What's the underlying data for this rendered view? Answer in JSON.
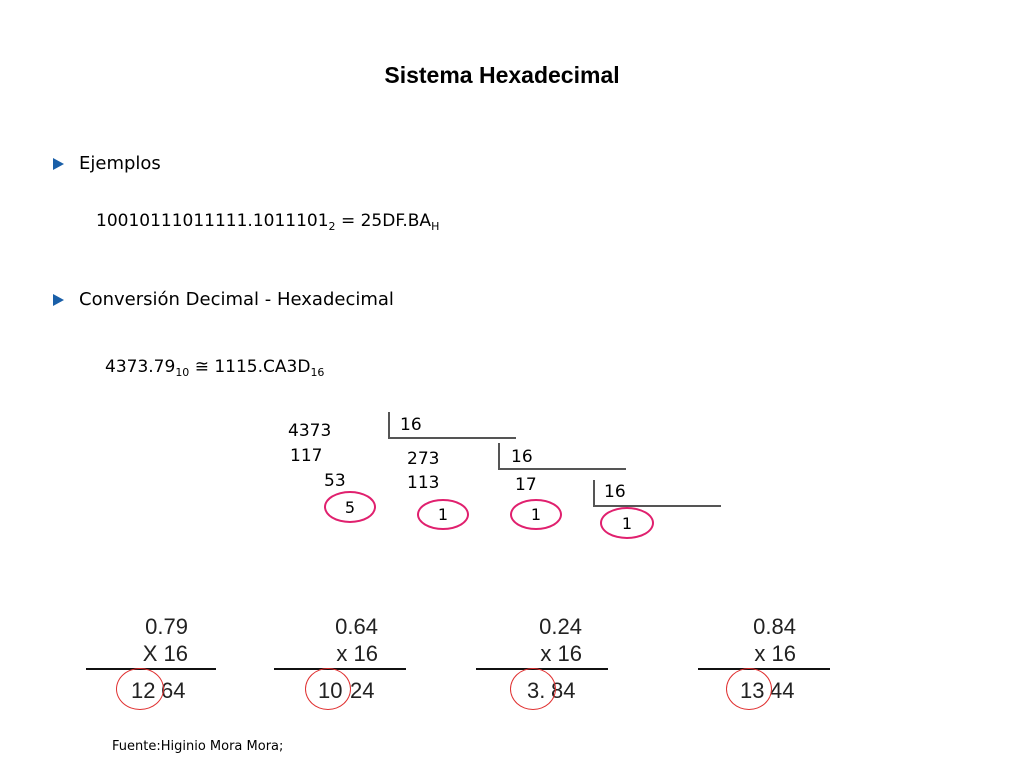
{
  "title": "Sistema Hexadecimal",
  "bullets": [
    {
      "icon": "triangle-bullet-icon",
      "label": "Ejemplos"
    },
    {
      "icon": "triangle-bullet-icon",
      "label": "Conversión Decimal - Hexadecimal"
    }
  ],
  "example": {
    "binary": "10010111011111.1011101",
    "binary_base": "2",
    "equals": " = 25DF.BA",
    "hex_base": "H"
  },
  "conversion": {
    "decimal": "4373.79",
    "decimal_base": "10",
    "approx": " ≅ 1115.CA3D",
    "hex_base": "16"
  },
  "division": {
    "dividend": "4373",
    "partial1": "117",
    "partial2": "53",
    "remainder1": "5",
    "divisor1": "16",
    "quotient1": "273",
    "partial3": "113",
    "remainder2": "1",
    "divisor2": "16",
    "quotient2": "17",
    "remainder3": "1",
    "divisor3": "16",
    "quotient3": "1"
  },
  "multiplications": [
    {
      "factor": "0.79",
      "multiplier": "X 16",
      "int_part": "12",
      "frac_part": "64"
    },
    {
      "factor": "0.64",
      "multiplier": "x 16",
      "int_part": "10",
      "frac_part": "24"
    },
    {
      "factor": "0.24",
      "multiplier": "x 16",
      "int_part": "3.",
      "frac_part": "84"
    },
    {
      "factor": "0.84",
      "multiplier": "x 16",
      "int_part": "13",
      "frac_part": "44"
    }
  ],
  "source": "Fuente:Higinio Mora Mora;",
  "colors": {
    "bullet": "#1a5fa8",
    "circle_magenta": "#e0206e",
    "circle_red": "#e03030"
  }
}
